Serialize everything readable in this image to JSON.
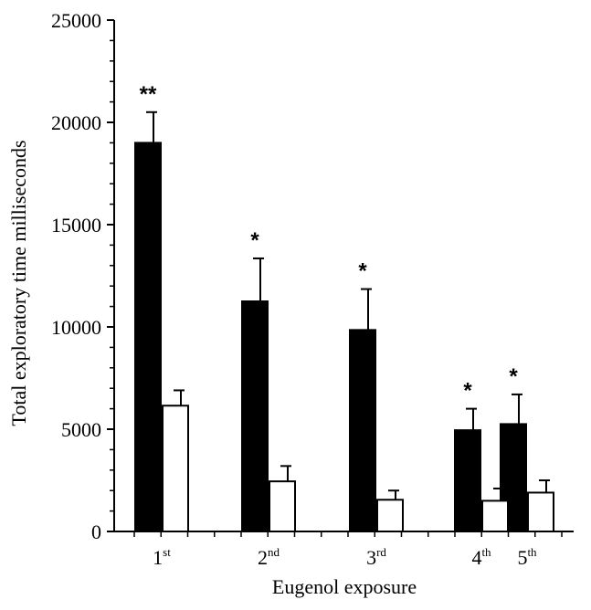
{
  "chart_data": {
    "type": "bar",
    "title": "",
    "xlabel": "Eugenol exposure",
    "ylabel": "Total exploratory time milliseconds",
    "ylim": [
      0,
      25000
    ],
    "yticks": [
      0,
      5000,
      10000,
      15000,
      20000,
      25000
    ],
    "categories": [
      {
        "base": "1",
        "sup": "st"
      },
      {
        "base": "2",
        "sup": "nd"
      },
      {
        "base": "3",
        "sup": "rd"
      },
      {
        "base": "4",
        "sup": "th"
      },
      {
        "base": "5",
        "sup": "th"
      }
    ],
    "series": [
      {
        "fill": "#000000",
        "values": [
          19000,
          11250,
          9850,
          4950,
          5250
        ],
        "errors": [
          1500,
          2100,
          2000,
          1050,
          1450
        ]
      },
      {
        "fill": "#ffffff",
        "values": [
          6150,
          2450,
          1550,
          1500,
          1900
        ],
        "errors": [
          750,
          750,
          450,
          600,
          600
        ]
      }
    ],
    "annotations": [
      "**",
      "*",
      "*",
      "*",
      "*"
    ],
    "grid": false,
    "legend": "none"
  }
}
